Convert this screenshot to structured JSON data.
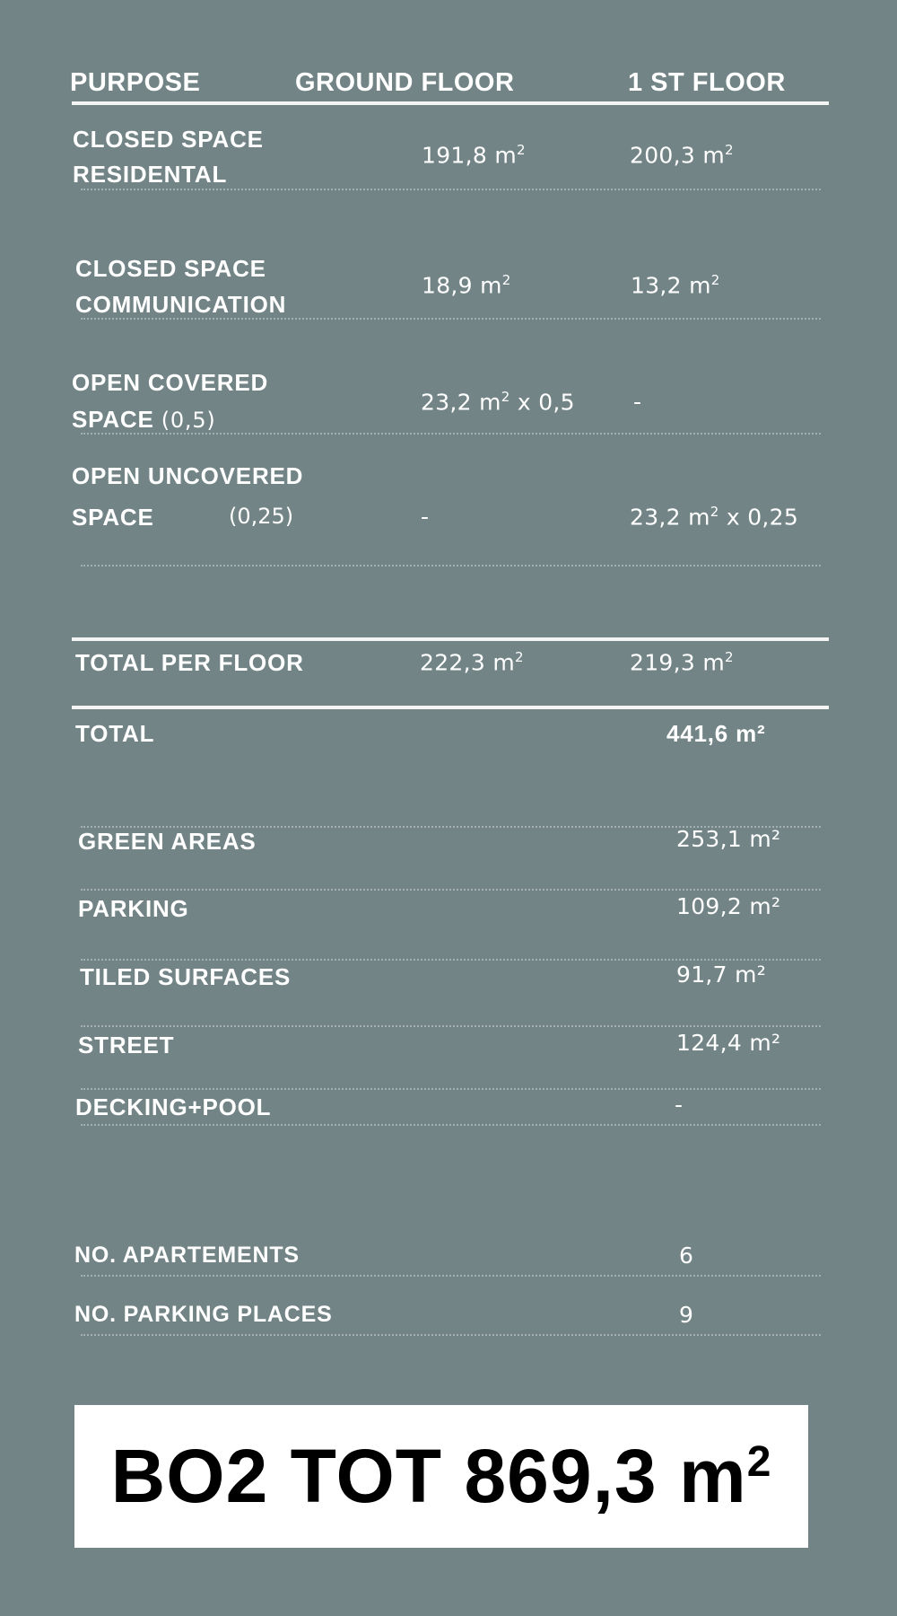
{
  "header": {
    "purpose": "PURPOSE",
    "ground_floor": "GROUND FLOOR",
    "first_floor": "1 ST FLOOR"
  },
  "rows": [
    {
      "label_line1": "CLOSED SPACE",
      "label_line2": "RESIDENTAL",
      "ground": "191,8 m",
      "ground_sup": "2",
      "first": "200,3 m",
      "first_sup": "2"
    },
    {
      "label_line1": "CLOSED SPACE",
      "label_line2": "COMMUNICATION",
      "ground": "18,9 m",
      "ground_sup": "2",
      "first": "13,2 m",
      "first_sup": "2"
    },
    {
      "label_line1": "OPEN COVERED",
      "label_line2": "SPACE",
      "factor": "(0,5)",
      "ground": "23,2 m",
      "ground_sup": "2",
      "ground_suffix": "x 0,5",
      "first": "-"
    },
    {
      "label_line1": "OPEN UNCOVERED",
      "label_line2": "SPACE",
      "factor": "(0,25)",
      "ground": "-",
      "first": "23,2 m",
      "first_sup": "2",
      "first_suffix": "x 0,25"
    }
  ],
  "total_per_floor": {
    "label": "TOTAL PER FLOOR",
    "ground": "222,3 m",
    "first": "219,3 m",
    "sup": "2"
  },
  "total": {
    "label": "TOTAL",
    "value": "441,6 m²"
  },
  "site": [
    {
      "label": "GREEN AREAS",
      "value": "253,1 m²"
    },
    {
      "label": "PARKING",
      "value": "109,2 m²"
    },
    {
      "label": "TILED SURFACES",
      "value": "91,7 m²"
    },
    {
      "label": "STREET",
      "value": "124,4 m²"
    },
    {
      "label": "DECKING+POOL",
      "value": "-"
    }
  ],
  "counts": [
    {
      "label": "NO. APARTEMENTS",
      "value": "6"
    },
    {
      "label": "NO. PARKING PLACES",
      "value": "9"
    }
  ],
  "grand_total": {
    "text": "BO2 TOT 869,3 m",
    "sup": "2"
  },
  "colors": {
    "background": "#728486",
    "text": "#ffffff",
    "box": "#ffffff",
    "box_text": "#000000"
  }
}
